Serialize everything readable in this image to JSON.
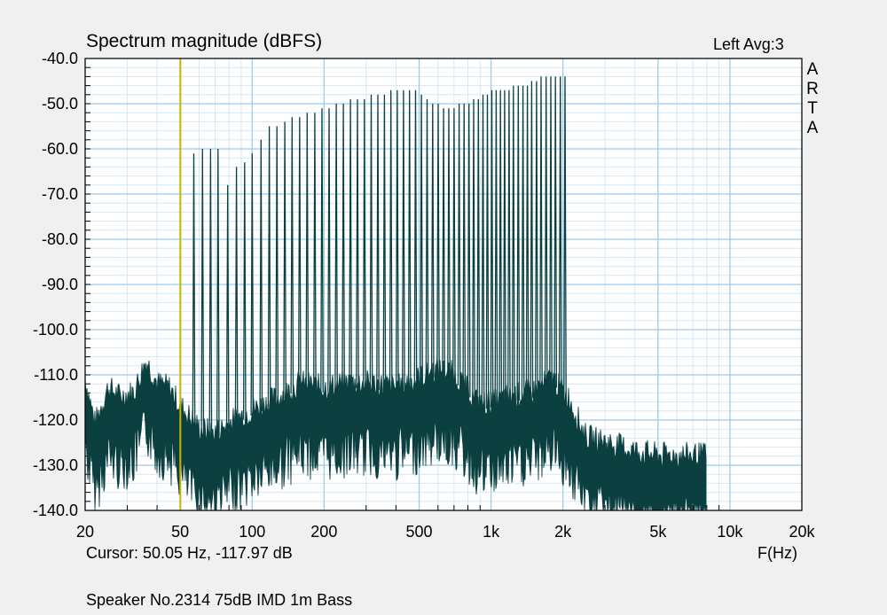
{
  "chart_data": {
    "type": "line",
    "title": "Spectrum magnitude (dBFS)",
    "xlabel": "F(Hz)",
    "x_scale": "log",
    "xlim": [
      20,
      20000
    ],
    "ylim": [
      -140,
      -40
    ],
    "y_ticks": [
      "-40.0",
      "-50.0",
      "-60.0",
      "-70.0",
      "-80.0",
      "-90.0",
      "-100.0",
      "-110.0",
      "-120.0",
      "-130.0",
      "-140.0"
    ],
    "x_ticks": [
      {
        "value": 20,
        "label": "20"
      },
      {
        "value": 50,
        "label": "50"
      },
      {
        "value": 100,
        "label": "100"
      },
      {
        "value": 200,
        "label": "200"
      },
      {
        "value": 500,
        "label": "500"
      },
      {
        "value": 1000,
        "label": "1k"
      },
      {
        "value": 2000,
        "label": "2k"
      },
      {
        "value": 5000,
        "label": "5k"
      },
      {
        "value": 10000,
        "label": "10k"
      },
      {
        "value": 20000,
        "label": "20k"
      }
    ],
    "grid": true,
    "cursor": {
      "freq_hz": 50.05
    },
    "series": [
      {
        "color": "#0b3f40",
        "tones": [
          [
            57,
            -61
          ],
          [
            62,
            -60
          ],
          [
            67,
            -60
          ],
          [
            72,
            -60
          ],
          [
            79,
            -68
          ],
          [
            86,
            -64
          ],
          [
            93,
            -63
          ],
          [
            100,
            -61
          ],
          [
            109,
            -58
          ],
          [
            118,
            -55
          ],
          [
            127,
            -55
          ],
          [
            137,
            -54
          ],
          [
            147,
            -53
          ],
          [
            158,
            -53
          ],
          [
            170,
            -52
          ],
          [
            183,
            -52
          ],
          [
            196,
            -51
          ],
          [
            210,
            -51
          ],
          [
            225,
            -50
          ],
          [
            241,
            -50
          ],
          [
            258,
            -49
          ],
          [
            276,
            -49
          ],
          [
            295,
            -49
          ],
          [
            315,
            -48
          ],
          [
            336,
            -48
          ],
          [
            358,
            -48
          ],
          [
            381,
            -47
          ],
          [
            405,
            -47
          ],
          [
            430,
            -47
          ],
          [
            456,
            -47
          ],
          [
            483,
            -47
          ],
          [
            511,
            -48
          ],
          [
            540,
            -49
          ],
          [
            570,
            -50
          ],
          [
            601,
            -50
          ],
          [
            633,
            -51
          ],
          [
            666,
            -51
          ],
          [
            700,
            -51
          ],
          [
            735,
            -50
          ],
          [
            771,
            -50
          ],
          [
            808,
            -50
          ],
          [
            846,
            -49
          ],
          [
            885,
            -49
          ],
          [
            925,
            -48
          ],
          [
            966,
            -48
          ],
          [
            1008,
            -47
          ],
          [
            1051,
            -47
          ],
          [
            1095,
            -47
          ],
          [
            1140,
            -47
          ],
          [
            1190,
            -47
          ],
          [
            1240,
            -46
          ],
          [
            1300,
            -46
          ],
          [
            1360,
            -46
          ],
          [
            1420,
            -46
          ],
          [
            1480,
            -45
          ],
          [
            1550,
            -45
          ],
          [
            1620,
            -44
          ],
          [
            1700,
            -44
          ],
          [
            1780,
            -44
          ],
          [
            1860,
            -44
          ],
          [
            1950,
            -44
          ],
          [
            2040,
            -44
          ]
        ],
        "noise_floor": [
          [
            20,
            -112
          ],
          [
            22,
            -122
          ],
          [
            25,
            -114
          ],
          [
            28,
            -116
          ],
          [
            32,
            -115
          ],
          [
            36,
            -108
          ],
          [
            40,
            -113
          ],
          [
            45,
            -114
          ],
          [
            50,
            -118
          ],
          [
            60,
            -123
          ],
          [
            70,
            -124
          ],
          [
            85,
            -121
          ],
          [
            100,
            -119
          ],
          [
            130,
            -116
          ],
          [
            160,
            -113
          ],
          [
            200,
            -114
          ],
          [
            250,
            -113
          ],
          [
            300,
            -113
          ],
          [
            400,
            -114
          ],
          [
            500,
            -112
          ],
          [
            600,
            -110
          ],
          [
            700,
            -111
          ],
          [
            900,
            -118
          ],
          [
            1200,
            -116
          ],
          [
            1500,
            -115
          ],
          [
            1800,
            -112
          ],
          [
            2100,
            -116
          ],
          [
            2500,
            -125
          ],
          [
            3000,
            -126
          ],
          [
            4000,
            -128
          ],
          [
            5000,
            -129
          ],
          [
            6000,
            -129
          ],
          [
            7000,
            -129
          ],
          [
            8000,
            -129
          ]
        ]
      }
    ]
  },
  "channel_info": "Left  Avg:3",
  "brand": [
    "A",
    "R",
    "T",
    "A"
  ],
  "cursor_readout": "Cursor: 50.05 Hz, -117.97 dB",
  "footer": "Speaker No.2314 75dB IMD 1m Bass",
  "colors": {
    "trace": "#0b3f40",
    "grid": "#9ccbea",
    "cursor": "#c8b400",
    "plot_bg": "#ffffff"
  }
}
